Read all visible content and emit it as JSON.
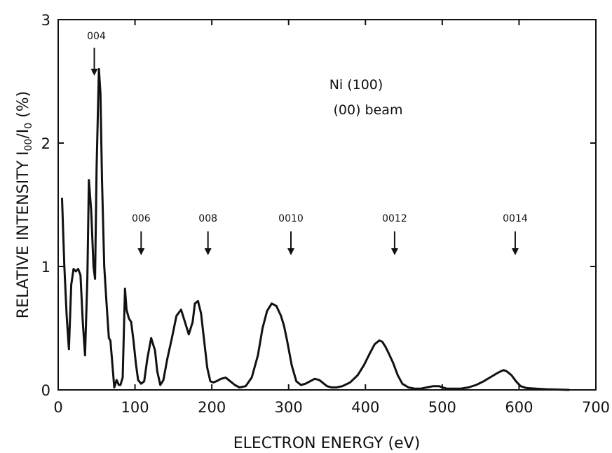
{
  "chart_data": {
    "type": "line",
    "title": "",
    "xlabel": "ELECTRON ENERGY (eV)",
    "ylabel": "RELATIVE INTENSITY I00/I0 (%)",
    "ylabel_parts": {
      "main": "RELATIVE INTENSITY I",
      "sub1": "00",
      "mid": "/I",
      "sub2": "0",
      "tail": " (%)"
    },
    "xlim": [
      0,
      700
    ],
    "ylim": [
      0,
      3
    ],
    "xticks": [
      0,
      100,
      200,
      300,
      400,
      500,
      600,
      700
    ],
    "yticks": [
      0,
      1,
      2,
      3
    ],
    "grid": false,
    "legend": "none",
    "notes": [
      "Ni (100)",
      "(00) beam"
    ],
    "annotations": [
      {
        "label": "004",
        "x": 47
      },
      {
        "label": "006",
        "x": 108
      },
      {
        "label": "008",
        "x": 195
      },
      {
        "label": "0010",
        "x": 303
      },
      {
        "label": "0012",
        "x": 438
      },
      {
        "label": "0014",
        "x": 595
      }
    ],
    "series": [
      {
        "x": [
          5,
          8,
          11,
          14,
          17,
          20,
          23,
          26,
          29,
          32,
          35,
          38,
          40,
          43,
          46,
          48,
          50,
          53,
          55,
          57,
          60,
          63,
          66,
          68,
          70,
          73,
          76,
          79,
          81,
          84,
          87,
          89,
          92,
          95,
          98,
          101,
          104,
          108,
          112,
          116,
          121,
          126,
          129,
          133,
          137,
          142,
          148,
          154,
          160,
          165,
          170,
          175,
          178,
          182,
          186,
          190,
          194,
          198,
          202,
          206,
          212,
          218,
          224,
          230,
          236,
          244,
          252,
          260,
          266,
          272,
          278,
          284,
          290,
          294,
          298,
          304,
          310,
          316,
          322,
          328,
          334,
          340,
          344,
          350,
          356,
          362,
          370,
          380,
          390,
          398,
          406,
          412,
          418,
          422,
          426,
          430,
          436,
          442,
          448,
          456,
          464,
          472,
          480,
          488,
          496,
          500,
          506,
          514,
          524,
          534,
          544,
          554,
          562,
          570,
          576,
          580,
          584,
          590,
          596,
          602,
          610,
          622,
          636,
          650,
          665
        ],
        "y": [
          1.55,
          1.0,
          0.6,
          0.33,
          0.85,
          0.98,
          0.96,
          0.98,
          0.93,
          0.55,
          0.28,
          0.9,
          1.7,
          1.45,
          1.0,
          0.9,
          1.8,
          2.6,
          2.4,
          1.7,
          1.0,
          0.7,
          0.42,
          0.4,
          0.25,
          0.02,
          0.08,
          0.04,
          0.04,
          0.1,
          0.82,
          0.65,
          0.58,
          0.55,
          0.4,
          0.22,
          0.08,
          0.05,
          0.07,
          0.25,
          0.42,
          0.32,
          0.15,
          0.04,
          0.08,
          0.25,
          0.42,
          0.6,
          0.65,
          0.55,
          0.45,
          0.55,
          0.7,
          0.72,
          0.62,
          0.4,
          0.18,
          0.07,
          0.06,
          0.07,
          0.09,
          0.1,
          0.07,
          0.04,
          0.02,
          0.03,
          0.1,
          0.28,
          0.5,
          0.64,
          0.7,
          0.68,
          0.6,
          0.52,
          0.4,
          0.2,
          0.07,
          0.04,
          0.05,
          0.07,
          0.09,
          0.08,
          0.06,
          0.03,
          0.02,
          0.02,
          0.03,
          0.06,
          0.12,
          0.2,
          0.3,
          0.37,
          0.4,
          0.39,
          0.35,
          0.3,
          0.22,
          0.12,
          0.05,
          0.02,
          0.01,
          0.01,
          0.02,
          0.03,
          0.03,
          0.02,
          0.01,
          0.01,
          0.01,
          0.02,
          0.04,
          0.07,
          0.1,
          0.13,
          0.15,
          0.16,
          0.15,
          0.12,
          0.07,
          0.03,
          0.015,
          0.01,
          0.005,
          0.003,
          0.0
        ]
      }
    ]
  }
}
